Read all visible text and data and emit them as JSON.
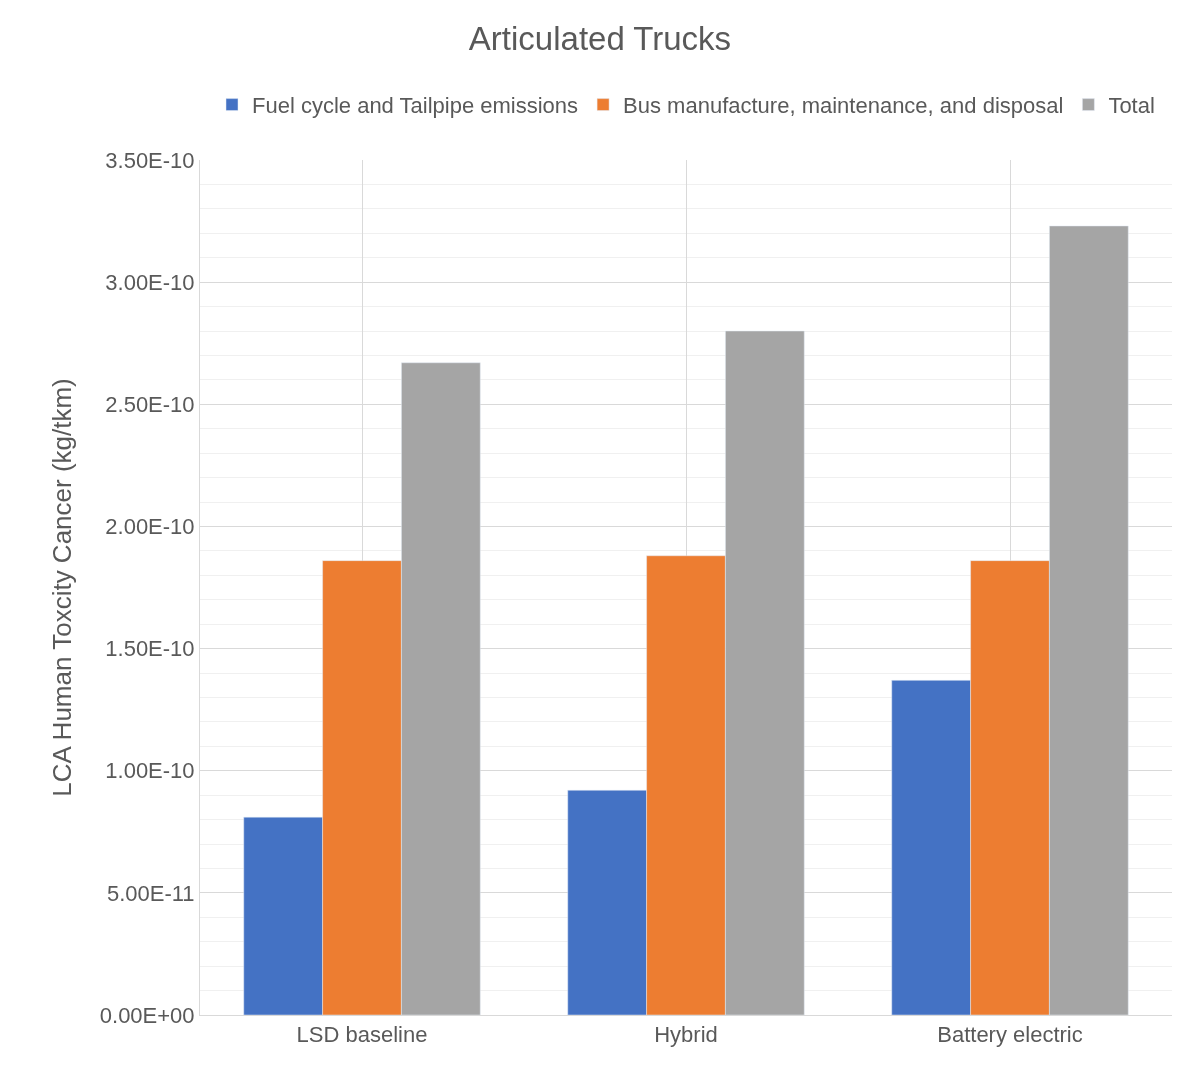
{
  "chart_data": {
    "type": "bar",
    "title": "Articulated Trucks",
    "ylabel": "LCA Human Toxcity Cancer (kg/tkm)",
    "categories": [
      "LSD baseline",
      "Hybrid",
      "Battery electric"
    ],
    "series": [
      {
        "name": "Fuel cycle and Tailpipe emissions",
        "color": "#4472c4",
        "values": [
          8.1e-11,
          9.2e-11,
          1.37e-10
        ]
      },
      {
        "name": "Bus manufacture, maintenance, and disposal",
        "color": "#ed7d31",
        "values": [
          1.86e-10,
          1.88e-10,
          1.86e-10
        ]
      },
      {
        "name": "Total",
        "color": "#a5a5a5",
        "values": [
          2.67e-10,
          2.8e-10,
          3.23e-10
        ]
      }
    ],
    "ylim": [
      0,
      3.5e-10
    ],
    "yticks": [
      {
        "value": 0,
        "label": "0.00E+00"
      },
      {
        "value": 5e-11,
        "label": "5.00E-11"
      },
      {
        "value": 1e-10,
        "label": "1.00E-10"
      },
      {
        "value": 1.5e-10,
        "label": "1.50E-10"
      },
      {
        "value": 2e-10,
        "label": "2.00E-10"
      },
      {
        "value": 2.5e-10,
        "label": "2.50E-10"
      },
      {
        "value": 3e-10,
        "label": "3.00E-10"
      },
      {
        "value": 3.5e-10,
        "label": "3.50E-10"
      }
    ],
    "grid": true,
    "legend": "top"
  }
}
